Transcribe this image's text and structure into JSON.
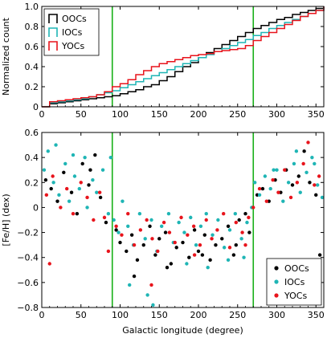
{
  "colors": {
    "ooc": "#000000",
    "ioc": "#1fb5b5",
    "yoc": "#e8141c",
    "vline": "#18b018",
    "axis": "#000000"
  },
  "chart_data": [
    {
      "type": "line",
      "ylabel": "Normalized count",
      "xlim": [
        0,
        360
      ],
      "ylim": [
        0,
        1.0
      ],
      "xticks": [
        0,
        50,
        100,
        150,
        200,
        250,
        300,
        350
      ],
      "yticks": [
        0,
        0.2,
        0.4,
        0.6,
        0.8,
        1.0
      ],
      "ytick_labels": [
        "0",
        "0.2",
        "0.4",
        "0.6",
        "0.8",
        "1.0"
      ],
      "legend_loc": "upper-left",
      "vlines": [
        90,
        270
      ],
      "series": [
        {
          "name": "OOCs",
          "key": "ooc",
          "x": [
            0,
            10,
            20,
            30,
            40,
            50,
            60,
            70,
            80,
            90,
            100,
            110,
            120,
            130,
            140,
            150,
            160,
            170,
            180,
            190,
            200,
            210,
            220,
            230,
            240,
            250,
            260,
            270,
            280,
            290,
            300,
            310,
            320,
            330,
            340,
            350,
            360
          ],
          "y": [
            0,
            0.03,
            0.04,
            0.05,
            0.06,
            0.07,
            0.08,
            0.09,
            0.1,
            0.11,
            0.13,
            0.15,
            0.17,
            0.2,
            0.22,
            0.26,
            0.3,
            0.35,
            0.4,
            0.44,
            0.49,
            0.54,
            0.58,
            0.62,
            0.66,
            0.7,
            0.74,
            0.78,
            0.81,
            0.84,
            0.87,
            0.89,
            0.92,
            0.94,
            0.96,
            0.98,
            1.0
          ]
        },
        {
          "name": "IOCs",
          "key": "ioc",
          "x": [
            0,
            10,
            20,
            30,
            40,
            50,
            60,
            70,
            80,
            90,
            100,
            110,
            120,
            130,
            140,
            150,
            160,
            170,
            180,
            190,
            200,
            210,
            220,
            230,
            240,
            250,
            260,
            270,
            280,
            290,
            300,
            310,
            320,
            330,
            340,
            350,
            360
          ],
          "y": [
            0,
            0.04,
            0.05,
            0.06,
            0.07,
            0.08,
            0.1,
            0.12,
            0.14,
            0.16,
            0.19,
            0.22,
            0.25,
            0.28,
            0.31,
            0.34,
            0.37,
            0.4,
            0.43,
            0.46,
            0.49,
            0.52,
            0.55,
            0.58,
            0.61,
            0.64,
            0.67,
            0.71,
            0.74,
            0.78,
            0.81,
            0.84,
            0.87,
            0.9,
            0.93,
            0.96,
            1.0
          ]
        },
        {
          "name": "YOCs",
          "key": "yoc",
          "x": [
            0,
            10,
            20,
            30,
            40,
            50,
            60,
            70,
            80,
            90,
            100,
            110,
            120,
            130,
            140,
            150,
            160,
            170,
            180,
            190,
            200,
            210,
            220,
            230,
            240,
            250,
            260,
            270,
            280,
            290,
            300,
            310,
            320,
            330,
            340,
            350,
            360
          ],
          "y": [
            0,
            0.05,
            0.06,
            0.07,
            0.08,
            0.09,
            0.1,
            0.12,
            0.15,
            0.2,
            0.23,
            0.27,
            0.32,
            0.36,
            0.4,
            0.43,
            0.45,
            0.47,
            0.49,
            0.51,
            0.52,
            0.53,
            0.55,
            0.56,
            0.57,
            0.58,
            0.61,
            0.66,
            0.7,
            0.74,
            0.78,
            0.82,
            0.86,
            0.9,
            0.93,
            0.96,
            1.0
          ]
        }
      ]
    },
    {
      "type": "scatter",
      "xlabel": "Galactic longitude (degree)",
      "ylabel": "[Fe/H] (dex)",
      "xlim": [
        0,
        360
      ],
      "ylim": [
        -0.8,
        0.6
      ],
      "xticks": [
        0,
        50,
        100,
        150,
        200,
        250,
        300,
        350
      ],
      "yticks": [
        -0.8,
        -0.6,
        -0.4,
        -0.2,
        0,
        0.2,
        0.4,
        0.6
      ],
      "ytick_labels": [
        "−0.8",
        "−0.6",
        "−0.4",
        "−0.2",
        "0",
        "0.2",
        "0.4",
        "0.6"
      ],
      "legend_loc": "lower-right",
      "vlines": [
        90,
        270
      ],
      "series": [
        {
          "name": "OOCs",
          "key": "ooc",
          "x": [
            5,
            12,
            20,
            28,
            38,
            45,
            52,
            60,
            68,
            75,
            82,
            95,
            100,
            108,
            115,
            122,
            130,
            138,
            145,
            150,
            158,
            165,
            172,
            180,
            188,
            195,
            200,
            208,
            215,
            222,
            230,
            238,
            245,
            252,
            260,
            265,
            275,
            282,
            290,
            298,
            305,
            312,
            320,
            328,
            335,
            342,
            350,
            355,
            62,
            118,
            160,
            205,
            248
          ],
          "y": [
            0.22,
            0.15,
            0.05,
            0.28,
            0.12,
            -0.05,
            0.35,
            0.18,
            0.42,
            0.08,
            -0.12,
            -0.18,
            -0.28,
            -0.35,
            -0.22,
            -0.42,
            -0.3,
            -0.15,
            -0.38,
            -0.25,
            -0.2,
            -0.45,
            -0.32,
            -0.28,
            -0.4,
            -0.18,
            -0.35,
            -0.22,
            -0.42,
            -0.3,
            -0.25,
            -0.15,
            -0.38,
            -0.1,
            -0.05,
            -0.2,
            0.1,
            0.15,
            0.05,
            0.22,
            0.12,
            0.3,
            0.18,
            0.25,
            0.45,
            0.2,
            0.1,
            -0.38,
            0.3,
            -0.55,
            -0.48,
            -0.38,
            -0.3
          ]
        },
        {
          "name": "IOCs",
          "key": "ioc",
          "x": [
            3,
            8,
            15,
            22,
            30,
            35,
            42,
            48,
            55,
            58,
            65,
            70,
            78,
            85,
            92,
            98,
            103,
            110,
            117,
            125,
            132,
            140,
            147,
            153,
            162,
            168,
            175,
            182,
            190,
            197,
            203,
            210,
            218,
            225,
            233,
            240,
            247,
            255,
            262,
            268,
            272,
            278,
            285,
            292,
            300,
            308,
            315,
            322,
            330,
            338,
            345,
            352,
            358,
            18,
            40,
            88,
            112,
            135,
            142,
            185,
            212,
            238,
            258,
            296,
            325,
            348
          ],
          "y": [
            0.3,
            0.45,
            0.2,
            0.1,
            0.35,
            0.05,
            0.25,
            0.15,
            0.4,
            0.0,
            0.22,
            0.12,
            0.3,
            -0.05,
            -0.1,
            -0.2,
            0.05,
            -0.15,
            -0.3,
            -0.05,
            -0.25,
            -0.1,
            -0.35,
            -0.15,
            -0.05,
            -0.28,
            -0.12,
            -0.2,
            -0.08,
            -0.3,
            -0.15,
            -0.05,
            -0.22,
            -0.1,
            -0.32,
            -0.18,
            -0.05,
            -0.25,
            -0.12,
            0.0,
            0.2,
            0.1,
            0.25,
            0.15,
            0.3,
            0.05,
            0.2,
            0.35,
            0.12,
            0.28,
            0.4,
            0.18,
            0.08,
            0.5,
            0.42,
            0.4,
            -0.62,
            -0.7,
            -0.78,
            -0.45,
            -0.48,
            -0.42,
            -0.4,
            0.3,
            0.45,
            0.35
          ]
        },
        {
          "name": "YOCs",
          "key": "yoc",
          "x": [
            6,
            14,
            24,
            32,
            40,
            50,
            58,
            66,
            74,
            80,
            95,
            102,
            110,
            118,
            126,
            134,
            141,
            148,
            156,
            163,
            170,
            178,
            186,
            194,
            202,
            210,
            217,
            224,
            232,
            240,
            248,
            256,
            264,
            270,
            278,
            287,
            295,
            302,
            310,
            318,
            326,
            334,
            340,
            348,
            354,
            10,
            85,
            140,
            195,
            260
          ],
          "y": [
            0.1,
            0.25,
            0.0,
            0.15,
            -0.05,
            0.2,
            0.08,
            -0.1,
            0.12,
            -0.08,
            -0.15,
            -0.22,
            -0.05,
            -0.3,
            -0.18,
            -0.1,
            -0.25,
            -0.35,
            -0.12,
            -0.2,
            -0.28,
            -0.08,
            -0.22,
            -0.15,
            -0.3,
            -0.1,
            -0.25,
            -0.18,
            -0.05,
            -0.32,
            -0.12,
            -0.2,
            -0.08,
            0.0,
            0.15,
            0.05,
            0.22,
            0.12,
            0.3,
            0.08,
            0.2,
            0.35,
            0.52,
            0.18,
            0.25,
            -0.45,
            -0.35,
            -0.62,
            -0.38,
            -0.3
          ]
        }
      ]
    }
  ]
}
